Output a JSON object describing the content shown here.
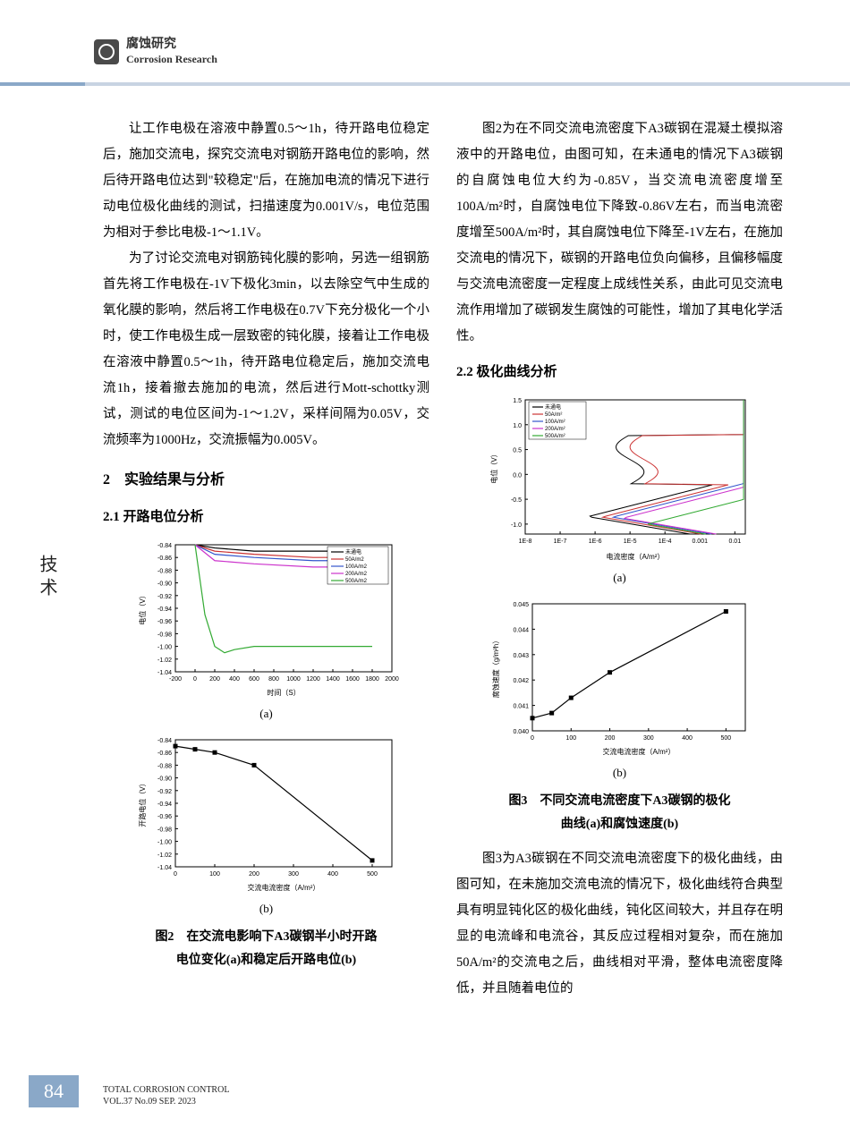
{
  "header": {
    "category_cn": "腐蚀研究",
    "category_en": "Corrosion Research"
  },
  "side_label": "技术",
  "left_col": {
    "p1": "让工作电极在溶液中静置0.5～1h，待开路电位稳定后，施加交流电，探究交流电对钢筋开路电位的影响，然后待开路电位达到\"较稳定\"后，在施加电流的情况下进行动电位极化曲线的测试，扫描速度为0.001V/s，电位范围为相对于参比电极-1～1.1V。",
    "p2": "为了讨论交流电对钢筋钝化膜的影响，另选一组钢筋首先将工作电极在-1V下极化3min，以去除空气中生成的氧化膜的影响，然后将工作电极在0.7V下充分极化一个小时，使工作电极生成一层致密的钝化膜，接着让工作电极在溶液中静置0.5～1h，待开路电位稳定后，施加交流电流1h，接着撤去施加的电流，然后进行Mott-schottky测试，测试的电位区间为-1～1.2V，采样间隔为0.05V，交流频率为1000Hz，交流振幅为0.005V。",
    "section2": "2　实验结果与分析",
    "sub21": "2.1  开路电位分析",
    "fig2a_label": "(a)",
    "fig2b_label": "(b)",
    "fig2_caption_l1": "图2　在交流电影响下A3碳钢半小时开路",
    "fig2_caption_l2": "电位变化(a)和稳定后开路电位(b)"
  },
  "right_col": {
    "p1": "图2为在不同交流电流密度下A3碳钢在混凝土模拟溶液中的开路电位，由图可知，在未通电的情况下A3碳钢的自腐蚀电位大约为-0.85V，当交流电流密度增至100A/m²时，自腐蚀电位下降致-0.86V左右，而当电流密度增至500A/m²时，其自腐蚀电位下降至-1V左右，在施加交流电的情况下，碳钢的开路电位负向偏移，且偏移幅度与交流电流密度一定程度上成线性关系，由此可见交流电流作用增加了碳钢发生腐蚀的可能性，增加了其电化学活性。",
    "sub22": "2.2  极化曲线分析",
    "fig3a_label": "(a)",
    "fig3b_label": "(b)",
    "fig3_caption_l1": "图3　不同交流电流密度下A3碳钢的极化",
    "fig3_caption_l2": "曲线(a)和腐蚀速度(b)",
    "p2": "图3为A3碳钢在不同交流电流密度下的极化曲线，由图可知，在未施加交流电流的情况下，极化曲线符合典型具有明显钝化区的极化曲线，钝化区间较大，并且存在明显的电流峰和电流谷，其反应过程相对复杂，而在施加50A/m²的交流电之后，曲线相对平滑，整体电流密度降低，并且随着电位的"
  },
  "fig2a": {
    "type": "line",
    "xlabel": "时间（S）",
    "ylabel": "电位（V）",
    "xlim": [
      -200,
      2000
    ],
    "ylim": [
      -1.04,
      -0.84
    ],
    "xticks": [
      -200,
      0,
      200,
      400,
      600,
      800,
      1000,
      1200,
      1400,
      1600,
      1800,
      2000
    ],
    "yticks": [
      -1.04,
      -1.02,
      -1.0,
      -0.98,
      -0.96,
      -0.94,
      -0.92,
      -0.9,
      -0.88,
      -0.86,
      -0.84
    ],
    "legend": [
      "未通电",
      "50A/m2",
      "100A/m2",
      "200A/m2",
      "500A/m2"
    ],
    "colors": [
      "#000000",
      "#cc3333",
      "#3355cc",
      "#cc33cc",
      "#33aa33"
    ],
    "series": {
      "none": [
        [
          0,
          -0.84
        ],
        [
          200,
          -0.845
        ],
        [
          600,
          -0.85
        ],
        [
          1200,
          -0.85
        ],
        [
          1800,
          -0.85
        ]
      ],
      "50": [
        [
          0,
          -0.84
        ],
        [
          200,
          -0.85
        ],
        [
          600,
          -0.855
        ],
        [
          1200,
          -0.86
        ],
        [
          1800,
          -0.86
        ]
      ],
      "100": [
        [
          0,
          -0.84
        ],
        [
          200,
          -0.855
        ],
        [
          600,
          -0.86
        ],
        [
          1200,
          -0.865
        ],
        [
          1800,
          -0.865
        ]
      ],
      "200": [
        [
          0,
          -0.84
        ],
        [
          200,
          -0.865
        ],
        [
          600,
          -0.87
        ],
        [
          1200,
          -0.875
        ],
        [
          1800,
          -0.875
        ]
      ],
      "500": [
        [
          0,
          -0.84
        ],
        [
          100,
          -0.95
        ],
        [
          200,
          -1.0
        ],
        [
          300,
          -1.01
        ],
        [
          400,
          -1.005
        ],
        [
          600,
          -1.0
        ],
        [
          900,
          -1.0
        ],
        [
          1400,
          -1.0
        ],
        [
          1800,
          -1.0
        ]
      ]
    },
    "line_width": 1.2,
    "font_size": 8,
    "background_color": "#ffffff",
    "axis_color": "#000000"
  },
  "fig2b": {
    "type": "line+marker",
    "xlabel": "交流电流密度（A/m²）",
    "ylabel": "开路电位（V）",
    "xlim": [
      0,
      550
    ],
    "ylim": [
      -1.04,
      -0.84
    ],
    "xticks": [
      0,
      100,
      200,
      300,
      400,
      500
    ],
    "yticks": [
      -1.04,
      -1.02,
      -1.0,
      -0.98,
      -0.96,
      -0.94,
      -0.92,
      -0.9,
      -0.88,
      -0.86,
      -0.84
    ],
    "points": [
      [
        0,
        -0.85
      ],
      [
        50,
        -0.855
      ],
      [
        100,
        -0.86
      ],
      [
        200,
        -0.88
      ],
      [
        500,
        -1.03
      ]
    ],
    "color": "#000000",
    "marker": "square",
    "marker_size": 5,
    "line_width": 1.2,
    "font_size": 8
  },
  "fig3a": {
    "type": "polarization",
    "xlabel": "电流密度（A/m²）",
    "ylabel": "电位（V）",
    "xscale": "log",
    "xlim_log": [
      -8,
      -1.7
    ],
    "ylim": [
      -1.2,
      1.5
    ],
    "xticks_log": [
      -8,
      -7,
      -6,
      -5,
      -4,
      -3,
      -2
    ],
    "xtick_labels": [
      "1E-8",
      "1E-7",
      "1E-6",
      "1E-5",
      "1E-4",
      "0.001",
      "0.01"
    ],
    "yticks": [
      -1.0,
      -0.5,
      0.0,
      0.5,
      1.0,
      1.5
    ],
    "legend": [
      "未通电",
      "50A/m²",
      "100A/m²",
      "200A/m²",
      "500A/m²"
    ],
    "colors": [
      "#000000",
      "#cc3333",
      "#3355cc",
      "#cc33cc",
      "#33aa33"
    ],
    "line_width": 1.0,
    "font_size": 8
  },
  "fig3b": {
    "type": "line+marker",
    "xlabel": "交流电流密度（A/m²）",
    "ylabel": "腐蚀速度（g/m²h）",
    "xlim": [
      0,
      550
    ],
    "ylim": [
      0.04,
      0.045
    ],
    "xticks": [
      0,
      100,
      200,
      300,
      400,
      500
    ],
    "yticks": [
      0.04,
      0.041,
      0.042,
      0.043,
      0.044,
      0.045
    ],
    "points": [
      [
        0,
        0.0405
      ],
      [
        50,
        0.0407
      ],
      [
        100,
        0.0413
      ],
      [
        200,
        0.0423
      ],
      [
        500,
        0.0447
      ]
    ],
    "color": "#000000",
    "marker": "square",
    "marker_size": 5,
    "line_width": 1.2,
    "font_size": 8
  },
  "footer": {
    "page": "84",
    "line1": "TOTAL CORROSION CONTROL",
    "line2": "VOL.37 No.09 SEP. 2023"
  }
}
